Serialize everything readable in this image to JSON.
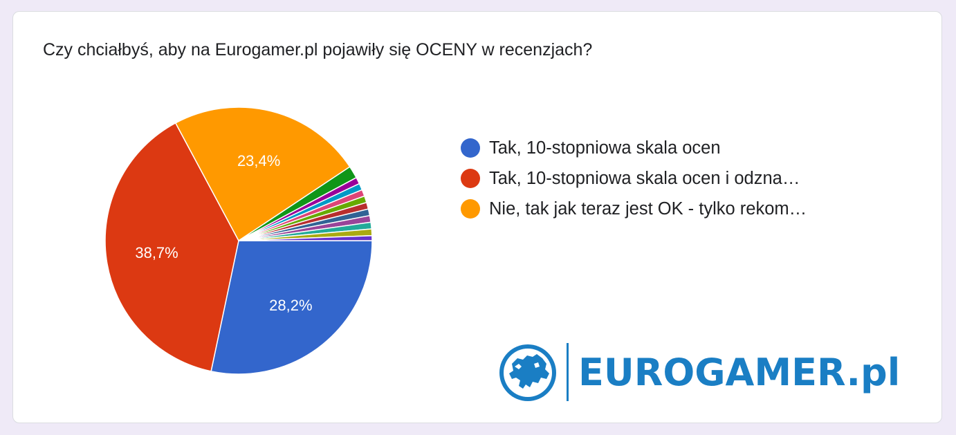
{
  "question": "Czy chciałbyś, aby na Eurogamer.pl pojawiły się OCENY w recenzjach?",
  "logo": {
    "text": "EUROGAMER.pl",
    "color": "#1a7ec4"
  },
  "chart_data": {
    "type": "pie",
    "title": "Czy chciałbyś, aby na Eurogamer.pl pojawiły się OCENY w recenzjach?",
    "legend_position": "right",
    "slices": [
      {
        "label": "Tak, 10-stopniowa skala ocen",
        "value": 28.2,
        "value_label": "28,2%",
        "color": "#3366cc"
      },
      {
        "label": "Tak, 10-stopniowa skala ocen i odzna…",
        "value": 38.7,
        "value_label": "38,7%",
        "color": "#dc3912"
      },
      {
        "label": "Nie, tak jak teraz jest OK - tylko rekom…",
        "value": 23.4,
        "value_label": "23,4%",
        "color": "#ff9900"
      },
      {
        "value": 1.5,
        "color": "#109618"
      },
      {
        "value": 0.8,
        "color": "#990099"
      },
      {
        "value": 0.8,
        "color": "#0099c6"
      },
      {
        "value": 0.8,
        "color": "#dd4477"
      },
      {
        "value": 0.8,
        "color": "#66aa00"
      },
      {
        "value": 0.8,
        "color": "#b82e2e"
      },
      {
        "value": 0.8,
        "color": "#316395"
      },
      {
        "value": 0.8,
        "color": "#994499"
      },
      {
        "value": 0.8,
        "color": "#22aa99"
      },
      {
        "value": 0.8,
        "color": "#aaaa11"
      },
      {
        "value": 0.6,
        "color": "#6633cc"
      }
    ],
    "start_angle_deg": 90
  }
}
